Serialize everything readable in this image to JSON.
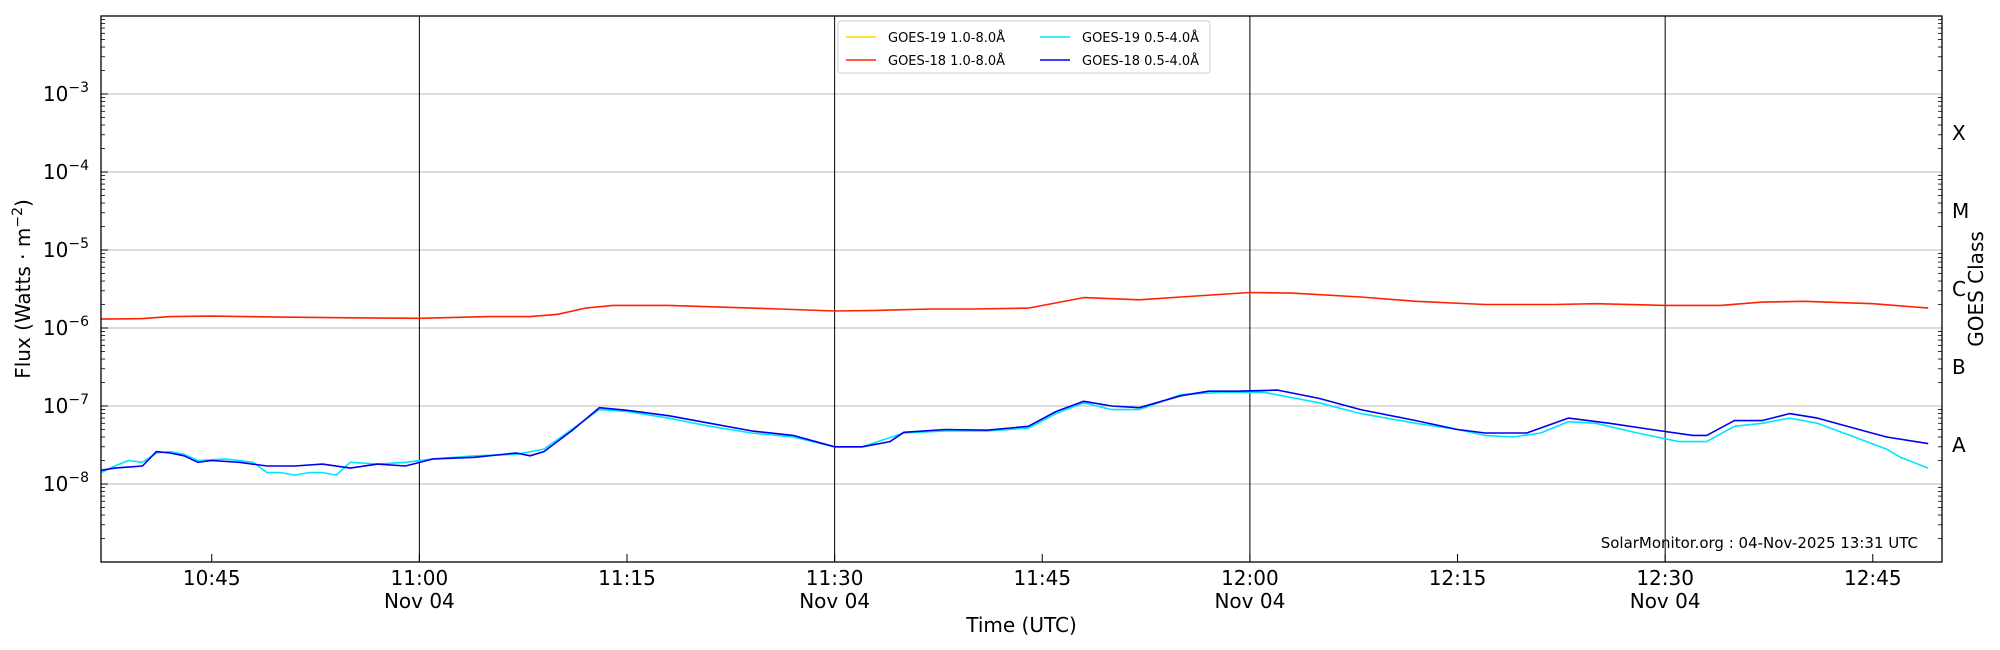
{
  "chart_data": {
    "type": "line",
    "xlabel": "Time (UTC)",
    "ylabel": "Flux (Watts · m",
    "ylabel_sup": "−2",
    "ylabel_close": ")",
    "right_label": "GOES Class",
    "yscale": "log",
    "ylim": [
      1e-09,
      0.01
    ],
    "xlim": [
      "10:37",
      "12:50"
    ],
    "grid": "horizontal at decades",
    "vertical_lines": [
      "11:00",
      "11:30",
      "12:00",
      "12:30"
    ],
    "x_ticks": [
      {
        "t": "10:45",
        "label": "10:45",
        "sub": ""
      },
      {
        "t": "11:00",
        "label": "11:00",
        "sub": "Nov 04"
      },
      {
        "t": "11:15",
        "label": "11:15",
        "sub": ""
      },
      {
        "t": "11:30",
        "label": "11:30",
        "sub": "Nov 04"
      },
      {
        "t": "11:45",
        "label": "11:45",
        "sub": ""
      },
      {
        "t": "12:00",
        "label": "12:00",
        "sub": "Nov 04"
      },
      {
        "t": "12:15",
        "label": "12:15",
        "sub": ""
      },
      {
        "t": "12:30",
        "label": "12:30",
        "sub": "Nov 04"
      },
      {
        "t": "12:45",
        "label": "12:45",
        "sub": ""
      }
    ],
    "y_ticks": [
      {
        "exp": -3,
        "label_base": "10",
        "label_exp": "−3"
      },
      {
        "exp": -4,
        "label_base": "10",
        "label_exp": "−4"
      },
      {
        "exp": -5,
        "label_base": "10",
        "label_exp": "−5"
      },
      {
        "exp": -6,
        "label_base": "10",
        "label_exp": "−6"
      },
      {
        "exp": -7,
        "label_base": "10",
        "label_exp": "−7"
      },
      {
        "exp": -8,
        "label_base": "10",
        "label_exp": "−8"
      }
    ],
    "goes_classes": [
      {
        "label": "X",
        "value": 0.000316
      },
      {
        "label": "M",
        "value": 3.16e-05
      },
      {
        "label": "C",
        "value": 3.16e-06
      },
      {
        "label": "B",
        "value": 3.16e-07
      },
      {
        "label": "A",
        "value": 3.16e-08
      }
    ],
    "legend": {
      "position": "top-center",
      "columns": 2
    },
    "series": [
      {
        "name": "GOES-19 1.0-8.0Å",
        "color": "#ffd700",
        "legend_order": 0,
        "points": []
      },
      {
        "name": "GOES-18 1.0-8.0Å",
        "color": "#ff2200",
        "legend_order": 1,
        "points": [
          [
            "10:37",
            1.3e-06
          ],
          [
            "10:40",
            1.32e-06
          ],
          [
            "10:42",
            1.4e-06
          ],
          [
            "10:45",
            1.42e-06
          ],
          [
            "10:50",
            1.38e-06
          ],
          [
            "10:55",
            1.35e-06
          ],
          [
            "11:00",
            1.33e-06
          ],
          [
            "11:05",
            1.4e-06
          ],
          [
            "11:08",
            1.4e-06
          ],
          [
            "11:10",
            1.5e-06
          ],
          [
            "11:12",
            1.8e-06
          ],
          [
            "11:14",
            1.95e-06
          ],
          [
            "11:18",
            1.95e-06
          ],
          [
            "11:22",
            1.85e-06
          ],
          [
            "11:26",
            1.75e-06
          ],
          [
            "11:30",
            1.65e-06
          ],
          [
            "11:33",
            1.68e-06
          ],
          [
            "11:37",
            1.75e-06
          ],
          [
            "11:40",
            1.75e-06
          ],
          [
            "11:44",
            1.8e-06
          ],
          [
            "11:46",
            2.1e-06
          ],
          [
            "11:48",
            2.45e-06
          ],
          [
            "11:52",
            2.3e-06
          ],
          [
            "11:55",
            2.5e-06
          ],
          [
            "12:00",
            2.85e-06
          ],
          [
            "12:03",
            2.8e-06
          ],
          [
            "12:08",
            2.5e-06
          ],
          [
            "12:12",
            2.2e-06
          ],
          [
            "12:17",
            2e-06
          ],
          [
            "12:22",
            2e-06
          ],
          [
            "12:25",
            2.05e-06
          ],
          [
            "12:30",
            1.95e-06
          ],
          [
            "12:34",
            1.95e-06
          ],
          [
            "12:37",
            2.15e-06
          ],
          [
            "12:40",
            2.2e-06
          ],
          [
            "12:45",
            2.05e-06
          ],
          [
            "12:49",
            1.8e-06
          ]
        ]
      },
      {
        "name": "GOES-19 0.5-4.0Å",
        "color": "#00e5ff",
        "legend_order": 2,
        "points": [
          [
            "10:37",
            1.4e-08
          ],
          [
            "10:38",
            1.7e-08
          ],
          [
            "10:39",
            2e-08
          ],
          [
            "10:40",
            1.9e-08
          ],
          [
            "10:41",
            2.5e-08
          ],
          [
            "10:42",
            2.6e-08
          ],
          [
            "10:43",
            2.4e-08
          ],
          [
            "10:44",
            2e-08
          ],
          [
            "10:46",
            2.1e-08
          ],
          [
            "10:48",
            1.9e-08
          ],
          [
            "10:49",
            1.4e-08
          ],
          [
            "10:50",
            1.4e-08
          ],
          [
            "10:51",
            1.3e-08
          ],
          [
            "10:52",
            1.4e-08
          ],
          [
            "10:53",
            1.4e-08
          ],
          [
            "10:54",
            1.3e-08
          ],
          [
            "10:55",
            1.9e-08
          ],
          [
            "10:57",
            1.8e-08
          ],
          [
            "10:59",
            1.9e-08
          ],
          [
            "11:01",
            2.1e-08
          ],
          [
            "11:04",
            2.3e-08
          ],
          [
            "11:07",
            2.4e-08
          ],
          [
            "11:09",
            2.8e-08
          ],
          [
            "11:11",
            5e-08
          ],
          [
            "11:13",
            9e-08
          ],
          [
            "11:15",
            8.5e-08
          ],
          [
            "11:18",
            7e-08
          ],
          [
            "11:21",
            5.5e-08
          ],
          [
            "11:24",
            4.5e-08
          ],
          [
            "11:27",
            4e-08
          ],
          [
            "11:30",
            3e-08
          ],
          [
            "11:32",
            3e-08
          ],
          [
            "11:35",
            4.5e-08
          ],
          [
            "11:38",
            4.8e-08
          ],
          [
            "11:41",
            4.8e-08
          ],
          [
            "11:44",
            5.2e-08
          ],
          [
            "11:46",
            8e-08
          ],
          [
            "11:48",
            1.1e-07
          ],
          [
            "11:50",
            9e-08
          ],
          [
            "11:52",
            9e-08
          ],
          [
            "11:55",
            1.4e-07
          ],
          [
            "11:58",
            1.5e-07
          ],
          [
            "12:01",
            1.5e-07
          ],
          [
            "12:05",
            1.1e-07
          ],
          [
            "12:08",
            8e-08
          ],
          [
            "12:12",
            6e-08
          ],
          [
            "12:15",
            5e-08
          ],
          [
            "12:17",
            4.2e-08
          ],
          [
            "12:19",
            4e-08
          ],
          [
            "12:21",
            4.5e-08
          ],
          [
            "12:23",
            6.3e-08
          ],
          [
            "12:25",
            6e-08
          ],
          [
            "12:28",
            4.5e-08
          ],
          [
            "12:31",
            3.5e-08
          ],
          [
            "12:33",
            3.5e-08
          ],
          [
            "12:35",
            5.5e-08
          ],
          [
            "12:37",
            6e-08
          ],
          [
            "12:39",
            7e-08
          ],
          [
            "12:41",
            6e-08
          ],
          [
            "12:44",
            3.8e-08
          ],
          [
            "12:46",
            2.8e-08
          ],
          [
            "12:47",
            2.2e-08
          ],
          [
            "12:49",
            1.6e-08
          ]
        ]
      },
      {
        "name": "GOES-18 0.5-4.0Å",
        "color": "#0000ee",
        "legend_order": 3,
        "points": [
          [
            "10:37",
            1.5e-08
          ],
          [
            "10:38",
            1.6e-08
          ],
          [
            "10:40",
            1.7e-08
          ],
          [
            "10:41",
            2.6e-08
          ],
          [
            "10:42",
            2.5e-08
          ],
          [
            "10:43",
            2.3e-08
          ],
          [
            "10:44",
            1.9e-08
          ],
          [
            "10:45",
            2e-08
          ],
          [
            "10:47",
            1.9e-08
          ],
          [
            "10:49",
            1.7e-08
          ],
          [
            "10:51",
            1.7e-08
          ],
          [
            "10:53",
            1.8e-08
          ],
          [
            "10:55",
            1.6e-08
          ],
          [
            "10:57",
            1.8e-08
          ],
          [
            "10:59",
            1.7e-08
          ],
          [
            "11:01",
            2.1e-08
          ],
          [
            "11:04",
            2.2e-08
          ],
          [
            "11:07",
            2.5e-08
          ],
          [
            "11:08",
            2.3e-08
          ],
          [
            "11:09",
            2.6e-08
          ],
          [
            "11:11",
            4.8e-08
          ],
          [
            "11:13",
            9.5e-08
          ],
          [
            "11:15",
            8.8e-08
          ],
          [
            "11:18",
            7.5e-08
          ],
          [
            "11:21",
            6e-08
          ],
          [
            "11:24",
            4.8e-08
          ],
          [
            "11:27",
            4.2e-08
          ],
          [
            "11:30",
            3e-08
          ],
          [
            "11:32",
            3e-08
          ],
          [
            "11:34",
            3.5e-08
          ],
          [
            "11:35",
            4.6e-08
          ],
          [
            "11:38",
            5e-08
          ],
          [
            "11:41",
            4.9e-08
          ],
          [
            "11:44",
            5.5e-08
          ],
          [
            "11:46",
            8.5e-08
          ],
          [
            "11:48",
            1.15e-07
          ],
          [
            "11:50",
            1e-07
          ],
          [
            "11:52",
            9.5e-08
          ],
          [
            "11:55",
            1.35e-07
          ],
          [
            "11:57",
            1.55e-07
          ],
          [
            "11:59",
            1.55e-07
          ],
          [
            "12:02",
            1.6e-07
          ],
          [
            "12:05",
            1.25e-07
          ],
          [
            "12:08",
            9e-08
          ],
          [
            "12:12",
            6.5e-08
          ],
          [
            "12:15",
            5e-08
          ],
          [
            "12:17",
            4.5e-08
          ],
          [
            "12:20",
            4.5e-08
          ],
          [
            "12:23",
            7e-08
          ],
          [
            "12:26",
            6e-08
          ],
          [
            "12:29",
            5e-08
          ],
          [
            "12:32",
            4.2e-08
          ],
          [
            "12:33",
            4.2e-08
          ],
          [
            "12:35",
            6.5e-08
          ],
          [
            "12:37",
            6.5e-08
          ],
          [
            "12:39",
            8e-08
          ],
          [
            "12:41",
            7e-08
          ],
          [
            "12:44",
            5e-08
          ],
          [
            "12:46",
            4e-08
          ],
          [
            "12:49",
            3.3e-08
          ]
        ]
      }
    ]
  },
  "watermark": "SolarMonitor.org : 04-Nov-2025 13:31 UTC"
}
